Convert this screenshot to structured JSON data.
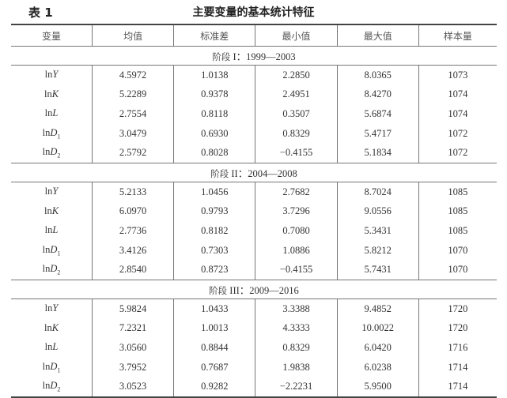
{
  "caption": {
    "number": "表 1",
    "title": "主要变量的基本统计特征"
  },
  "headers": [
    "变量",
    "均值",
    "标准差",
    "最小值",
    "最大值",
    "样本量"
  ],
  "sections": [
    {
      "label_prefix": "阶段",
      "label_roman": " I",
      "label_range": "：1999—2003",
      "rows": [
        {
          "var": {
            "ln": "ln",
            "sym": "Y",
            "sub": ""
          },
          "values": [
            "4.5972",
            "1.0138",
            "2.2850",
            "8.0365",
            "1073"
          ]
        },
        {
          "var": {
            "ln": "ln",
            "sym": "K",
            "sub": ""
          },
          "values": [
            "5.2289",
            "0.9378",
            "2.4951",
            "8.4270",
            "1074"
          ]
        },
        {
          "var": {
            "ln": "ln",
            "sym": "L",
            "sub": ""
          },
          "values": [
            "2.7554",
            "0.8118",
            "0.3507",
            "5.6874",
            "1074"
          ]
        },
        {
          "var": {
            "ln": "ln",
            "sym": "D",
            "sub": "1"
          },
          "values": [
            "3.0479",
            "0.6930",
            "0.8329",
            "5.4717",
            "1072"
          ]
        },
        {
          "var": {
            "ln": "ln",
            "sym": "D",
            "sub": "2"
          },
          "values": [
            "2.5792",
            "0.8028",
            "−0.4155",
            "5.1834",
            "1072"
          ]
        }
      ]
    },
    {
      "label_prefix": "阶段",
      "label_roman": " II",
      "label_range": "：2004—2008",
      "rows": [
        {
          "var": {
            "ln": "ln",
            "sym": "Y",
            "sub": ""
          },
          "values": [
            "5.2133",
            "1.0456",
            "2.7682",
            "8.7024",
            "1085"
          ]
        },
        {
          "var": {
            "ln": "ln",
            "sym": "K",
            "sub": ""
          },
          "values": [
            "6.0970",
            "0.9793",
            "3.7296",
            "9.0556",
            "1085"
          ]
        },
        {
          "var": {
            "ln": "ln",
            "sym": "L",
            "sub": ""
          },
          "values": [
            "2.7736",
            "0.8182",
            "0.7080",
            "5.3431",
            "1085"
          ]
        },
        {
          "var": {
            "ln": "ln",
            "sym": "D",
            "sub": "1"
          },
          "values": [
            "3.4126",
            "0.7303",
            "1.0886",
            "5.8212",
            "1070"
          ]
        },
        {
          "var": {
            "ln": "ln",
            "sym": "D",
            "sub": "2"
          },
          "values": [
            "2.8540",
            "0.8723",
            "−0.4155",
            "5.7431",
            "1070"
          ]
        }
      ]
    },
    {
      "label_prefix": "阶段",
      "label_roman": " III",
      "label_range": "：2009—2016",
      "rows": [
        {
          "var": {
            "ln": "ln",
            "sym": "Y",
            "sub": ""
          },
          "values": [
            "5.9824",
            "1.0433",
            "3.3388",
            "9.4852",
            "1720"
          ]
        },
        {
          "var": {
            "ln": "ln",
            "sym": "K",
            "sub": ""
          },
          "values": [
            "7.2321",
            "1.0013",
            "4.3333",
            "10.0022",
            "1720"
          ]
        },
        {
          "var": {
            "ln": "ln",
            "sym": "L",
            "sub": ""
          },
          "values": [
            "3.0560",
            "0.8844",
            "0.8329",
            "6.0420",
            "1716"
          ]
        },
        {
          "var": {
            "ln": "ln",
            "sym": "D",
            "sub": "1"
          },
          "values": [
            "3.7952",
            "0.7687",
            "1.9838",
            "6.0238",
            "1714"
          ]
        },
        {
          "var": {
            "ln": "ln",
            "sym": "D",
            "sub": "2"
          },
          "values": [
            "3.0523",
            "0.9282",
            "−2.2231",
            "5.9500",
            "1714"
          ]
        }
      ]
    }
  ]
}
